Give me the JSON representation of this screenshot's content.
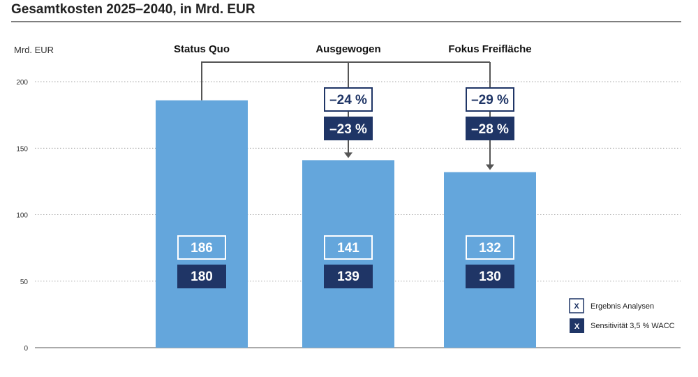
{
  "chart_data": {
    "type": "bar",
    "title": "Gesamtkosten 2025–2040, in Mrd. EUR",
    "ylabel": "Mrd. EUR",
    "ylim": [
      0,
      200
    ],
    "yticks": [
      "0",
      "50",
      "100",
      "150",
      "200"
    ],
    "grid": true,
    "legend_position": "bottom-right",
    "categories": [
      "Status Quo",
      "Ausgewogen",
      "Fokus Freifläche"
    ],
    "series": [
      {
        "name": "Ergebnis Analysen",
        "values": [
          186,
          141,
          132
        ],
        "labels": [
          "186",
          "141",
          "132"
        ]
      },
      {
        "name": "Sensitivität 3,5 % WACC",
        "values": [
          180,
          139,
          130
        ],
        "labels": [
          "180",
          "139",
          "130"
        ]
      }
    ],
    "changes": [
      null,
      {
        "analysen": "–24 %",
        "sensitivitaet": "–23 %"
      },
      {
        "analysen": "–29 %",
        "sensitivitaet": "–28 %"
      }
    ],
    "legend": [
      {
        "marker": "X",
        "label": "Ergebnis Analysen",
        "style": "outline"
      },
      {
        "marker": "X",
        "label": "Sensitivität 3,5 % WACC",
        "style": "filled"
      }
    ],
    "colors": {
      "bar": "#64a6dc",
      "dark": "#1f3566",
      "grid": "#888888",
      "axis": "#555555",
      "connector": "#555555"
    }
  }
}
